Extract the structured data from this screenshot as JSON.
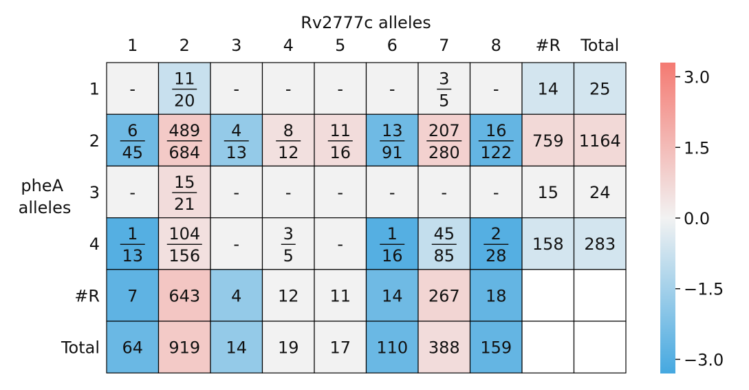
{
  "chart_data": {
    "type": "heatmap",
    "title": "Rv2777c alleles",
    "ylabel": [
      "pheA",
      "alleles"
    ],
    "columns": [
      "1",
      "2",
      "3",
      "4",
      "5",
      "6",
      "7",
      "8",
      "#R",
      "Total"
    ],
    "rows": [
      "1",
      "2",
      "3",
      "4",
      "#R",
      "Total"
    ],
    "cells": [
      [
        {
          "t": "-",
          "v": 0
        },
        {
          "n": "11",
          "d": "20",
          "v": -0.8
        },
        {
          "t": "-",
          "v": 0
        },
        {
          "t": "-",
          "v": 0
        },
        {
          "t": "-",
          "v": 0
        },
        {
          "t": "-",
          "v": 0
        },
        {
          "n": "3",
          "d": "5",
          "v": 0
        },
        {
          "t": "-",
          "v": 0
        },
        {
          "t": "14",
          "v": -0.6
        },
        {
          "t": "25",
          "v": -0.6
        }
      ],
      [
        {
          "n": "6",
          "d": "45",
          "v": -2.5
        },
        {
          "n": "489",
          "d": "684",
          "v": 1.1
        },
        {
          "n": "4",
          "d": "13",
          "v": -1.8
        },
        {
          "n": "8",
          "d": "12",
          "v": 0.5
        },
        {
          "n": "11",
          "d": "16",
          "v": 0.6
        },
        {
          "n": "13",
          "d": "91",
          "v": -2.5
        },
        {
          "n": "207",
          "d": "280",
          "v": 0.9
        },
        {
          "n": "16",
          "d": "122",
          "v": -2.7
        },
        {
          "t": "759",
          "v": 0.7
        },
        {
          "t": "1164",
          "v": 0.7
        }
      ],
      [
        {
          "t": "-",
          "v": 0
        },
        {
          "n": "15",
          "d": "21",
          "v": 0.6
        },
        {
          "t": "-",
          "v": 0
        },
        {
          "t": "-",
          "v": 0
        },
        {
          "t": "-",
          "v": 0
        },
        {
          "t": "-",
          "v": 0
        },
        {
          "t": "-",
          "v": 0
        },
        {
          "t": "-",
          "v": 0
        },
        {
          "t": "15",
          "v": 0
        },
        {
          "t": "24",
          "v": 0
        }
      ],
      [
        {
          "n": "1",
          "d": "13",
          "v": -3.0
        },
        {
          "n": "104",
          "d": "156",
          "v": 0.5
        },
        {
          "t": "-",
          "v": 0
        },
        {
          "n": "3",
          "d": "5",
          "v": 0
        },
        {
          "t": "-",
          "v": 0
        },
        {
          "n": "1",
          "d": "16",
          "v": -3.0
        },
        {
          "n": "45",
          "d": "85",
          "v": -0.9
        },
        {
          "n": "2",
          "d": "28",
          "v": -3.0
        },
        {
          "t": "158",
          "v": -0.6
        },
        {
          "t": "283",
          "v": -0.6
        }
      ],
      [
        {
          "t": "7",
          "v": -2.8
        },
        {
          "t": "643",
          "v": 1.2
        },
        {
          "t": "4",
          "v": -1.8
        },
        {
          "t": "12",
          "v": 0
        },
        {
          "t": "11",
          "v": 0
        },
        {
          "t": "14",
          "v": -2.5
        },
        {
          "t": "267",
          "v": 0.8
        },
        {
          "t": "18",
          "v": -2.7
        },
        {
          "t": "",
          "blank": true
        },
        {
          "t": "",
          "blank": true
        }
      ],
      [
        {
          "t": "64",
          "v": -2.6
        },
        {
          "t": "919",
          "v": 1.1
        },
        {
          "t": "14",
          "v": -1.8
        },
        {
          "t": "19",
          "v": 0
        },
        {
          "t": "17",
          "v": 0
        },
        {
          "t": "110",
          "v": -2.6
        },
        {
          "t": "388",
          "v": 0.6
        },
        {
          "t": "159",
          "v": -2.7
        },
        {
          "t": "",
          "blank": true
        },
        {
          "t": "",
          "blank": true
        }
      ]
    ],
    "colorbar": {
      "range": [
        -3.3,
        3.3
      ],
      "ticks": [
        3.0,
        1.5,
        0.0,
        -1.5,
        -3.0
      ],
      "tick_labels": [
        "3.0",
        "1.5",
        "0.0",
        "−1.5",
        "−3.0"
      ],
      "colors": {
        "low": "#45a8e0",
        "mid": "#f2f2f2",
        "high": "#f47a72"
      }
    },
    "grid": true
  }
}
